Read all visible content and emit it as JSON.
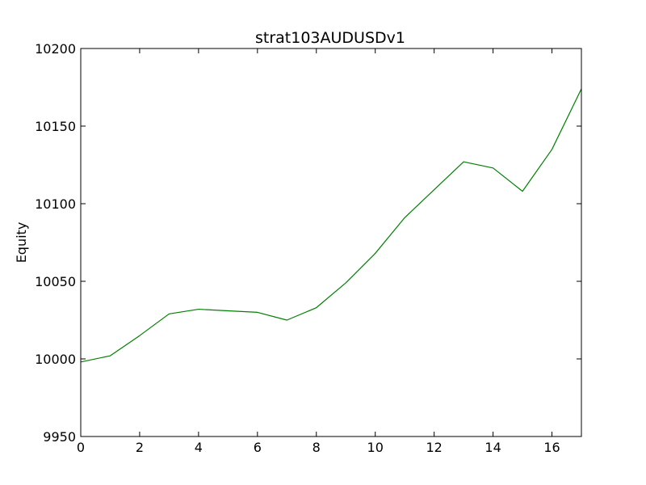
{
  "chart_data": {
    "type": "line",
    "title": "strat103AUDUSDv1",
    "xlabel": "",
    "ylabel": "Equity",
    "xlim": [
      0,
      17
    ],
    "ylim": [
      9950,
      10200
    ],
    "xticks": [
      0,
      2,
      4,
      6,
      8,
      10,
      12,
      14,
      16
    ],
    "yticks": [
      9950,
      10000,
      10050,
      10100,
      10150,
      10200
    ],
    "grid": false,
    "series": [
      {
        "color": "#008000",
        "x": [
          0,
          1,
          2,
          3,
          4,
          5,
          6,
          7,
          8,
          9,
          10,
          11,
          12,
          13,
          14,
          15,
          16,
          17
        ],
        "y": [
          9998,
          10002,
          10015,
          10029,
          10032,
          10031,
          10030,
          10025,
          10033,
          10049,
          10068,
          10091,
          10109,
          10127,
          10123,
          10108,
          10135,
          10174
        ]
      }
    ]
  }
}
